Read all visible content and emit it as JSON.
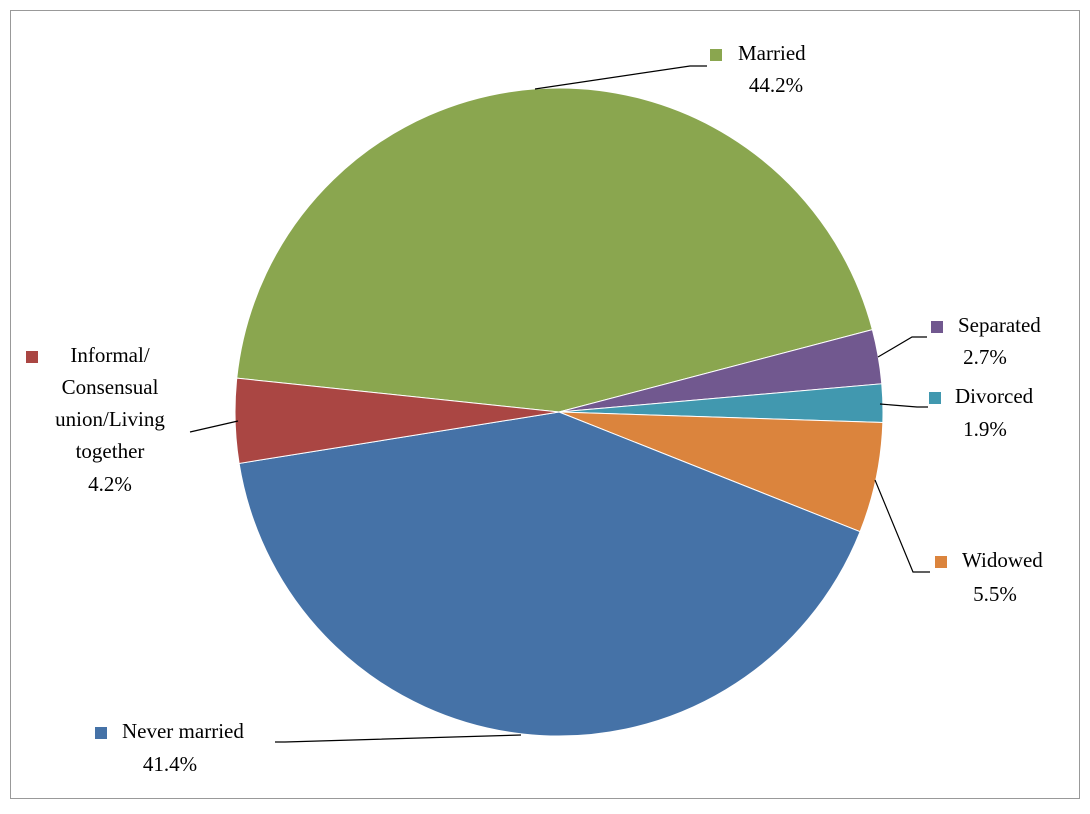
{
  "chart_data": {
    "type": "pie",
    "categories": [
      "Married",
      "Separated",
      "Divorced",
      "Widowed",
      "Never married",
      "Informal/ Consensual union/Living together"
    ],
    "values": [
      44.2,
      2.7,
      1.9,
      5.5,
      41.4,
      4.2
    ],
    "value_labels": [
      "44.2%",
      "2.7%",
      "1.9%",
      "5.5%",
      "41.4%",
      "4.2%"
    ],
    "colors": [
      "#8aa64f",
      "#71588f",
      "#4198af",
      "#db843d",
      "#4572a7",
      "#aa4643"
    ]
  }
}
